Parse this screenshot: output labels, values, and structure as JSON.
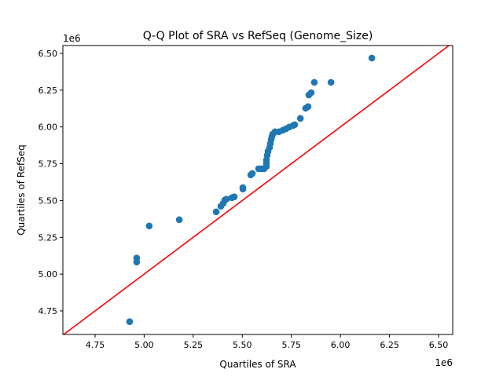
{
  "chart_data": {
    "type": "scatter",
    "title": "Q-Q Plot of SRA vs RefSeq (Genome_Size)",
    "xlabel": "Quartiles of SRA",
    "ylabel": "Quartiles of RefSeq",
    "x_offset_label": "1e6",
    "y_offset_label": "1e6",
    "xlim": [
      4.586,
      6.572
    ],
    "ylim": [
      4.59,
      6.553
    ],
    "xticks": [
      "4.75",
      "5.00",
      "5.25",
      "5.50",
      "5.75",
      "6.00",
      "6.25",
      "6.50"
    ],
    "yticks": [
      "4.75",
      "5.00",
      "5.25",
      "5.50",
      "5.75",
      "6.00",
      "6.25",
      "6.50"
    ],
    "grid": false,
    "point_color": "#1f77b4",
    "reference_line": {
      "type": "y=x",
      "color": "#ff0000"
    },
    "points": [
      [
        4.926,
        4.677
      ],
      [
        4.962,
        5.082
      ],
      [
        4.962,
        5.109
      ],
      [
        5.026,
        5.327
      ],
      [
        5.179,
        5.37
      ],
      [
        5.367,
        5.423
      ],
      [
        5.391,
        5.461
      ],
      [
        5.403,
        5.482
      ],
      [
        5.411,
        5.503
      ],
      [
        5.419,
        5.509
      ],
      [
        5.447,
        5.519
      ],
      [
        5.459,
        5.525
      ],
      [
        5.503,
        5.578
      ],
      [
        5.503,
        5.588
      ],
      [
        5.543,
        5.674
      ],
      [
        5.551,
        5.684
      ],
      [
        5.583,
        5.716
      ],
      [
        5.599,
        5.716
      ],
      [
        5.611,
        5.716
      ],
      [
        5.623,
        5.732
      ],
      [
        5.623,
        5.754
      ],
      [
        5.623,
        5.775
      ],
      [
        5.627,
        5.807
      ],
      [
        5.631,
        5.834
      ],
      [
        5.639,
        5.86
      ],
      [
        5.643,
        5.887
      ],
      [
        5.647,
        5.914
      ],
      [
        5.651,
        5.935
      ],
      [
        5.655,
        5.951
      ],
      [
        5.667,
        5.967
      ],
      [
        5.687,
        5.967
      ],
      [
        5.707,
        5.978
      ],
      [
        5.723,
        5.988
      ],
      [
        5.739,
        5.999
      ],
      [
        5.759,
        6.01
      ],
      [
        5.767,
        6.015
      ],
      [
        5.796,
        6.058
      ],
      [
        5.823,
        6.127
      ],
      [
        5.835,
        6.138
      ],
      [
        5.839,
        6.217
      ],
      [
        5.851,
        6.233
      ],
      [
        5.867,
        6.303
      ],
      [
        5.952,
        6.303
      ],
      [
        6.16,
        6.468
      ]
    ]
  }
}
